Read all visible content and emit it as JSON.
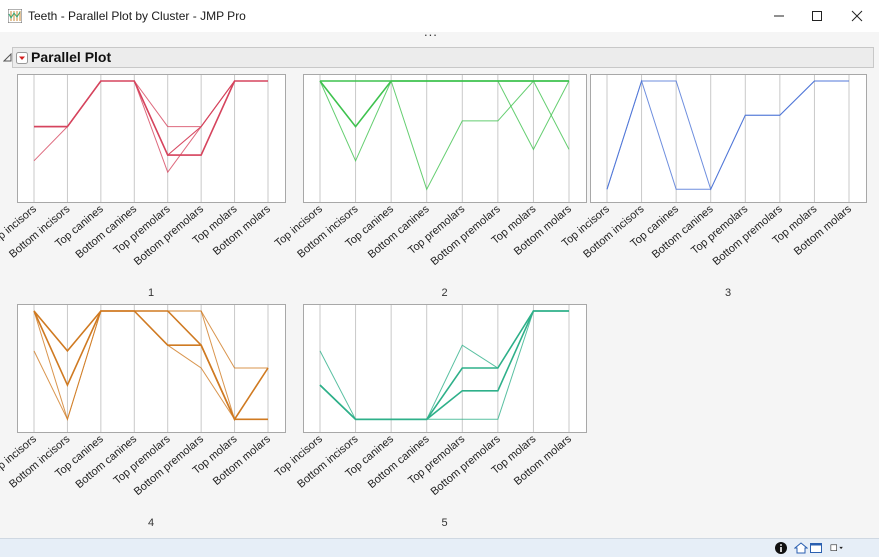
{
  "window": {
    "title": "Teeth - Parallel Plot by Cluster - JMP Pro",
    "minimize_icon": "minimize-icon",
    "maximize_icon": "maximize-icon",
    "close_icon": "close-icon"
  },
  "toolbar": {
    "overflow": "..."
  },
  "report": {
    "section_title": "Parallel Plot"
  },
  "chart_data": [
    {
      "type": "line",
      "label": "1",
      "color": "#d6455e",
      "categories": [
        "Top incisors",
        "Bottom incisors",
        "Top canines",
        "Bottom canines",
        "Top premolars",
        "Bottom premolars",
        "Top molars",
        "Bottom molars"
      ],
      "ylim": [
        0,
        1
      ],
      "series": [
        {
          "values": [
            0.6,
            0.6,
            1,
            1,
            0.35,
            0.35,
            1,
            1
          ],
          "weight": 2
        },
        {
          "values": [
            0.6,
            0.6,
            1,
            1,
            0.35,
            0.6,
            1,
            1
          ],
          "weight": 1
        },
        {
          "values": [
            0.6,
            0.6,
            1,
            1,
            0.6,
            0.6,
            1,
            1
          ],
          "weight": 1
        },
        {
          "values": [
            0.6,
            0.6,
            1,
            1,
            0.2,
            0.6,
            1,
            1
          ],
          "weight": 1
        },
        {
          "values": [
            0.6,
            0.6,
            1,
            1,
            0.35,
            0.35,
            1,
            1
          ],
          "weight": 1
        },
        {
          "values": [
            0.3,
            0.6,
            1,
            1,
            0.35,
            0.6,
            1,
            1
          ],
          "weight": 1
        }
      ]
    },
    {
      "type": "line",
      "label": "2",
      "color": "#3ec24e",
      "categories": [
        "Top incisors",
        "Bottom incisors",
        "Top canines",
        "Bottom canines",
        "Top premolars",
        "Bottom premolars",
        "Top molars",
        "Bottom molars"
      ],
      "ylim": [
        0,
        1
      ],
      "series": [
        {
          "values": [
            1,
            0.6,
            1,
            1,
            1,
            1,
            1,
            1
          ],
          "weight": 2
        },
        {
          "values": [
            1,
            0.3,
            1,
            1,
            1,
            1,
            0.4,
            1
          ],
          "weight": 1
        },
        {
          "values": [
            1,
            1,
            1,
            0.05,
            0.65,
            0.65,
            1,
            1
          ],
          "weight": 1
        },
        {
          "values": [
            1,
            1,
            1,
            1,
            1,
            1,
            1,
            0.4
          ],
          "weight": 1
        },
        {
          "values": [
            1,
            1,
            1,
            1,
            1,
            1,
            1,
            1
          ],
          "weight": 2
        }
      ]
    },
    {
      "type": "line",
      "label": "3",
      "color": "#4a72d6",
      "categories": [
        "Top incisors",
        "Bottom incisors",
        "Top canines",
        "Bottom canines",
        "Top premolars",
        "Bottom premolars",
        "Top molars",
        "Bottom molars"
      ],
      "ylim": [
        0,
        1
      ],
      "series": [
        {
          "values": [
            0.05,
            1,
            0.05,
            0.05,
            0.7,
            0.7,
            1,
            1
          ],
          "weight": 1
        },
        {
          "values": [
            0.05,
            1,
            1,
            0.05,
            0.7,
            0.7,
            1,
            1
          ],
          "weight": 1
        }
      ]
    },
    {
      "type": "line",
      "label": "4",
      "color": "#cf7a22",
      "categories": [
        "Top incisors",
        "Bottom incisors",
        "Top canines",
        "Bottom canines",
        "Top premolars",
        "Bottom premolars",
        "Top molars",
        "Bottom molars"
      ],
      "ylim": [
        0,
        1
      ],
      "series": [
        {
          "values": [
            1,
            0.65,
            1,
            1,
            1,
            0.7,
            0.05,
            0.05
          ],
          "weight": 2
        },
        {
          "values": [
            1,
            0.35,
            1,
            1,
            0.7,
            0.7,
            0.05,
            0.5
          ],
          "weight": 2
        },
        {
          "values": [
            1,
            0.05,
            1,
            1,
            0.7,
            0.5,
            0.05,
            0.05
          ],
          "weight": 1
        },
        {
          "values": [
            0.65,
            0.05,
            1,
            1,
            1,
            1,
            0.5,
            0.5
          ],
          "weight": 1
        },
        {
          "values": [
            1,
            0.65,
            1,
            1,
            1,
            1,
            0.05,
            0.5
          ],
          "weight": 1
        }
      ]
    },
    {
      "type": "line",
      "label": "5",
      "color": "#2fb08a",
      "categories": [
        "Top incisors",
        "Bottom incisors",
        "Top canines",
        "Bottom canines",
        "Top premolars",
        "Bottom premolars",
        "Top molars",
        "Bottom molars"
      ],
      "ylim": [
        0,
        1
      ],
      "series": [
        {
          "values": [
            0.35,
            0.05,
            0.05,
            0.05,
            0.5,
            0.5,
            1,
            1
          ],
          "weight": 2
        },
        {
          "values": [
            0.65,
            0.05,
            0.05,
            0.05,
            0.5,
            0.5,
            1,
            1
          ],
          "weight": 1
        },
        {
          "values": [
            0.35,
            0.05,
            0.05,
            0.05,
            0.3,
            0.3,
            1,
            1
          ],
          "weight": 2
        },
        {
          "values": [
            0.35,
            0.05,
            0.05,
            0.05,
            0.7,
            0.5,
            1,
            1
          ],
          "weight": 1
        },
        {
          "values": [
            0.35,
            0.05,
            0.05,
            0.05,
            0.05,
            0.05,
            1,
            1
          ],
          "weight": 1
        }
      ]
    }
  ]
}
